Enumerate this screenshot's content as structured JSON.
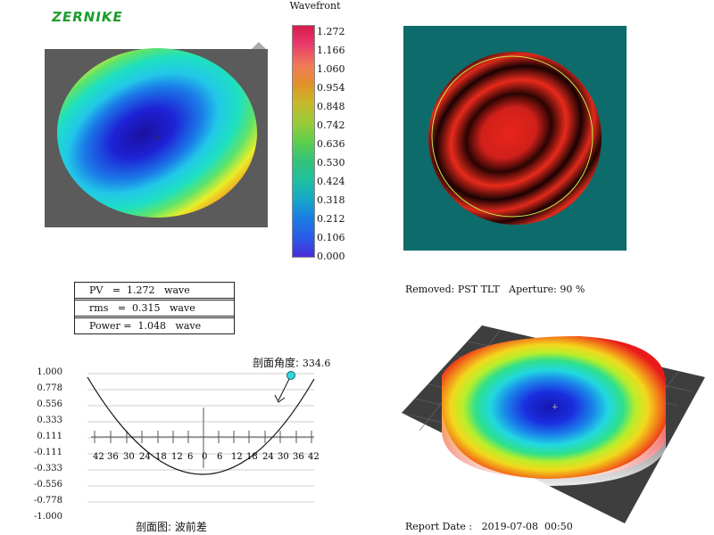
{
  "logo": "ZERNIKE",
  "wavefront": {
    "title": "Wavefront",
    "legend_values": [
      "1.272",
      "1.166",
      "1.060",
      "0.954",
      "0.848",
      "0.742",
      "0.636",
      "0.530",
      "0.424",
      "0.318",
      "0.212",
      "0.106",
      "0.000"
    ],
    "colors": {
      "background_gray": "#5b5b5b",
      "interferogram_bg": "#0d6b6b",
      "aperture_ring": "#c8e84a"
    }
  },
  "stats": {
    "pv": "PV   =  1.272   wave",
    "rms": "rms   =  0.315   wave",
    "power": "Power =  1.048   wave"
  },
  "removed": "Removed: PST TLT   Aperture: 90 %",
  "profile": {
    "angle_label": "剖面角度:",
    "angle_value": "334.6",
    "caption": "剖面图: 波前差",
    "y_ticks": [
      "1.000",
      "0.778",
      "0.556",
      "0.333",
      "0.111",
      "-0.111",
      "-0.333",
      "-0.556",
      "-0.778",
      "-1.000"
    ],
    "x_ticks": [
      "42",
      "36",
      "30",
      "24",
      "18",
      "12",
      "6",
      "0",
      "6",
      "12",
      "18",
      "24",
      "30",
      "36",
      "42"
    ]
  },
  "report_date": "Report Date :   2019-07-08  00:50"
}
